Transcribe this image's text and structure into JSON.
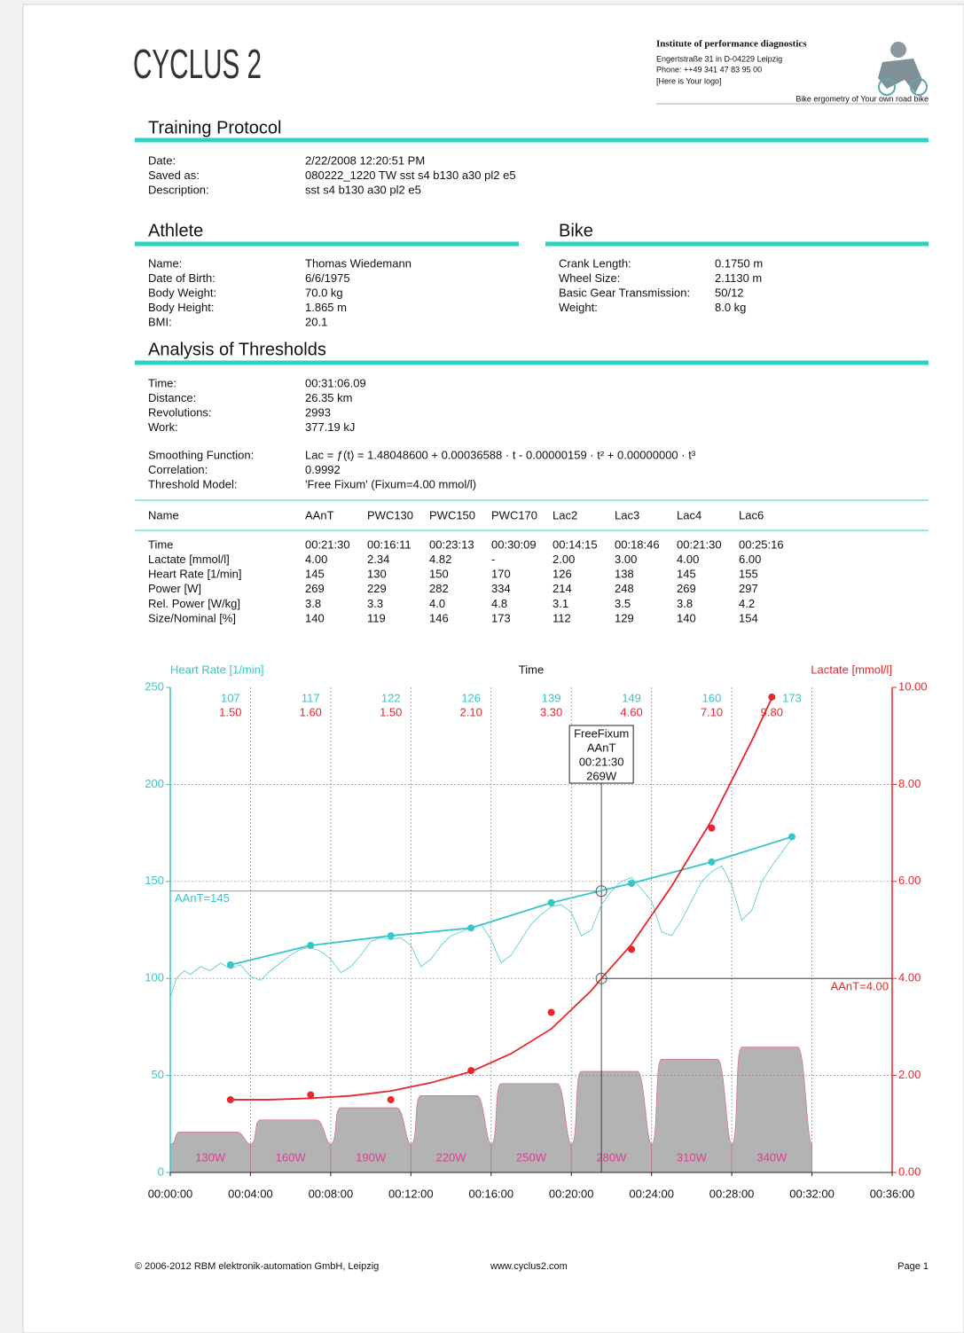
{
  "header": {
    "logo": "CYCLUS 2",
    "institute": "Institute of performance diagnostics",
    "address": "Engertstraße 31 in D-04229 Leipzig",
    "phone": "Phone:  ++49 341 47 83 95 00",
    "logo_placeholder": "[Here is Your logo]",
    "tagline": "Bike ergometry of Your own road bike"
  },
  "training_protocol": {
    "title": "Training Protocol",
    "fields": [
      [
        "Date:",
        "2/22/2008 12:20:51 PM"
      ],
      [
        "Saved as:",
        "080222_1220 TW sst s4 b130 a30 pl2 e5"
      ],
      [
        "Description:",
        "sst s4 b130 a30 pl2 e5"
      ]
    ]
  },
  "athlete": {
    "title": "Athlete",
    "fields": [
      [
        "Name:",
        "Thomas Wiedemann"
      ],
      [
        "Date of Birth:",
        "6/6/1975"
      ],
      [
        "Body Weight:",
        "70.0 kg"
      ],
      [
        "Body Height:",
        "1.865 m"
      ],
      [
        "BMI:",
        "20.1"
      ]
    ]
  },
  "bike": {
    "title": "Bike",
    "fields": [
      [
        "Crank Length:",
        "0.1750 m"
      ],
      [
        "Wheel Size:",
        "2.1130 m"
      ],
      [
        "Basic Gear Transmission:",
        "50/12"
      ],
      [
        "Weight:",
        "8.0 kg"
      ]
    ]
  },
  "analysis": {
    "title": "Analysis of Thresholds",
    "fields": [
      [
        "Time:",
        "00:31:06.09"
      ],
      [
        "Distance:",
        "26.35 km"
      ],
      [
        "Revolutions:",
        "2993"
      ],
      [
        "Work:",
        "377.19 kJ"
      ]
    ],
    "model_fields": [
      [
        "Smoothing Function:",
        "Lac = ƒ(t) = 1.48048600 + 0.00036588 · t - 0.00000159 · t² + 0.00000000 · t³"
      ],
      [
        "Correlation:",
        "0.9992"
      ],
      [
        "Threshold Model:",
        "'Free Fixum' (Fixum=4.00 mmol/l)"
      ]
    ]
  },
  "thresholds": {
    "columns": [
      "Name",
      "AAnT",
      "PWC130",
      "PWC150",
      "PWC170",
      "Lac2",
      "Lac3",
      "Lac4",
      "Lac6"
    ],
    "rows": [
      [
        "Time",
        "00:21:30",
        "00:16:11",
        "00:23:13",
        "00:30:09",
        "00:14:15",
        "00:18:46",
        "00:21:30",
        "00:25:16"
      ],
      [
        "Lactate [mmol/l]",
        "4.00",
        "2.34",
        "4.82",
        "-",
        "2.00",
        "3.00",
        "4.00",
        "6.00"
      ],
      [
        "Heart Rate [1/min]",
        "145",
        "130",
        "150",
        "170",
        "126",
        "138",
        "145",
        "155"
      ],
      [
        "Power [W]",
        "269",
        "229",
        "282",
        "334",
        "214",
        "248",
        "269",
        "297"
      ],
      [
        "Rel. Power [W/kg]",
        "3.8",
        "3.3",
        "4.0",
        "4.8",
        "3.1",
        "3.5",
        "3.8",
        "4.2"
      ],
      [
        "Size/Nominal [%]",
        "140",
        "119",
        "146",
        "173",
        "112",
        "129",
        "140",
        "154"
      ]
    ]
  },
  "chart_data": {
    "type": "line",
    "x_title": "Time",
    "y_title": "Heart Rate [1/min]",
    "y2_title": "Lactate [mmol/l]",
    "xlim": [
      0,
      36
    ],
    "xticks": [
      {
        "value": 0,
        "label": "00:00:00"
      },
      {
        "value": 4,
        "label": "00:04:00"
      },
      {
        "value": 8,
        "label": "00:08:00"
      },
      {
        "value": 12,
        "label": "00:12:00"
      },
      {
        "value": 16,
        "label": "00:16:00"
      },
      {
        "value": 20,
        "label": "00:20:00"
      },
      {
        "value": 24,
        "label": "00:24:00"
      },
      {
        "value": 28,
        "label": "00:28:00"
      },
      {
        "value": 32,
        "label": "00:32:00"
      },
      {
        "value": 36,
        "label": "00:36:00"
      }
    ],
    "ylim": [
      0,
      250
    ],
    "yticks": [
      0,
      50,
      100,
      150,
      200,
      250
    ],
    "y2lim": [
      0,
      10
    ],
    "y2ticks": [
      {
        "value": 0,
        "label": "0.00"
      },
      {
        "value": 2,
        "label": "2.00"
      },
      {
        "value": 4,
        "label": "4.00"
      },
      {
        "value": 6,
        "label": "6.00"
      },
      {
        "value": 8,
        "label": "8.00"
      },
      {
        "value": 10,
        "label": "10.00"
      }
    ],
    "plim": [
      30,
      1230
    ],
    "grid": true,
    "y_color": "#36c5c8",
    "y2_color": "#e8262b",
    "series": [
      {
        "color": "#36c5c8",
        "style": "line+markers",
        "top_labels": true,
        "x": [
          3,
          7,
          11,
          15,
          19,
          23,
          27,
          31
        ],
        "values": [
          107,
          117,
          122,
          126,
          139,
          149,
          160,
          173
        ]
      },
      {
        "color": "#36c5c8",
        "style": "line",
        "x": [
          0,
          0.3,
          0.7,
          1,
          1.5,
          2,
          2.5,
          3,
          3.5,
          4,
          4.5,
          5,
          5.5,
          6,
          6.5,
          7,
          7.5,
          8,
          8.5,
          9,
          9.5,
          10,
          10.5,
          11,
          11.5,
          12,
          12.5,
          13,
          13.5,
          14,
          14.5,
          15,
          15.5,
          16,
          16.5,
          17,
          17.5,
          18,
          18.5,
          19,
          19.5,
          20,
          20.5,
          21,
          21.5,
          22,
          22.5,
          23,
          23.5,
          24,
          24.5,
          25,
          25.5,
          26,
          26.5,
          27,
          27.5,
          28,
          28.5,
          29,
          29.5,
          30,
          30.5,
          31
        ],
        "values": [
          90,
          100,
          104,
          102,
          106,
          104,
          108,
          105,
          107,
          101,
          99,
          104,
          108,
          112,
          115,
          116,
          114,
          110,
          103,
          106,
          112,
          119,
          121,
          120,
          121,
          117,
          106,
          110,
          117,
          122,
          124,
          126,
          128,
          120,
          108,
          112,
          120,
          128,
          133,
          137,
          138,
          134,
          122,
          125,
          138,
          145,
          150,
          152,
          146,
          140,
          124,
          122,
          130,
          140,
          150,
          155,
          158,
          148,
          130,
          135,
          150,
          158,
          165,
          172
        ]
      },
      {
        "color": "#e8262b",
        "style": "markers",
        "axis": "y2",
        "top_labels": true,
        "x": [
          3,
          7,
          11,
          15,
          19,
          23,
          27,
          30
        ],
        "values": [
          1.5,
          1.6,
          1.5,
          2.1,
          3.3,
          4.6,
          7.1,
          9.8
        ],
        "value_labels": [
          "1.50",
          "1.60",
          "1.50",
          "2.10",
          "3.30",
          "4.60",
          "7.10",
          "9.80"
        ]
      },
      {
        "color": "#e8262b",
        "style": "line",
        "axis": "y2",
        "x": [
          3,
          5,
          7,
          9,
          11,
          13,
          15,
          17,
          19,
          21,
          21.5,
          23,
          25,
          27,
          29,
          30
        ],
        "values": [
          1.5,
          1.5,
          1.53,
          1.58,
          1.68,
          1.85,
          2.08,
          2.45,
          2.96,
          3.75,
          4.0,
          4.7,
          5.9,
          7.26,
          8.9,
          9.78
        ]
      },
      {
        "color": "#b3b3b3",
        "style": "stages",
        "axis": "power",
        "x": [
          2,
          6,
          10,
          14,
          18,
          22,
          26,
          30
        ],
        "values": [
          130,
          160,
          190,
          220,
          250,
          280,
          310,
          340
        ],
        "value_labels": [
          "130W",
          "160W",
          "190W",
          "220W",
          "250W",
          "280W",
          "310W",
          "340W"
        ]
      }
    ],
    "threshold": {
      "x": 21.5,
      "hr": 145,
      "lactate": 4.0,
      "hr_label": "AAnT=145",
      "lactate_label": "AAnT=4.00",
      "box": [
        "FreeFixum",
        "AAnT",
        "00:21:30",
        "269W"
      ]
    }
  },
  "footer": {
    "copyright": "© 2006-2012 RBM elektronik-automation GmbH, Leipzig",
    "website": "www.cyclus2.com",
    "page": "Page 1"
  }
}
